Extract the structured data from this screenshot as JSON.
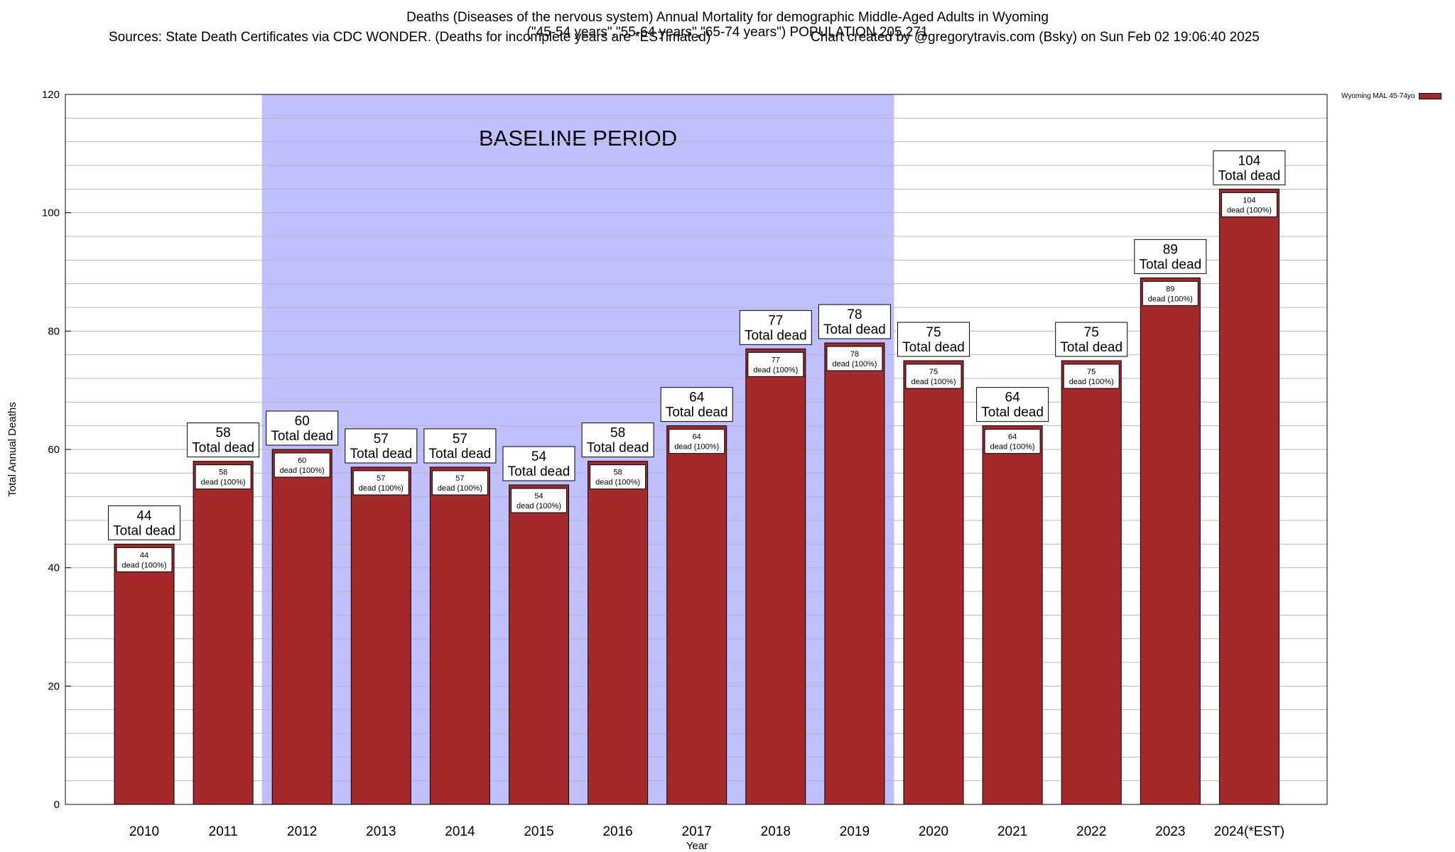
{
  "title": {
    "line1": "Deaths (Diseases of the nervous system) Annual Mortality for demographic Middle-Aged Adults in Wyoming",
    "line2": "(\"45-54 years\",\"55-64 years\",\"65-74 years\") POPULATION 205,271",
    "line3_left": "Sources: State Death Certificates via CDC WONDER. (Deaths for incomplete years are *ESTimated)",
    "line3_right": "Chart created by @gregorytravis.com (Bsky) on Sun Feb 02 19:06:40 2025"
  },
  "colors": {
    "bar": "#a4292b",
    "baseline": "#c0c0ff",
    "grid": "#b8b8b8"
  },
  "chart_data": {
    "type": "bar",
    "title": "Deaths (Diseases of the nervous system) Annual Mortality for demographic Middle-Aged Adults in Wyoming",
    "xlabel": "Year",
    "ylabel": "Total Annual Deaths",
    "ylim": [
      0,
      120
    ],
    "yticks": [
      0,
      20,
      40,
      60,
      80,
      100,
      120
    ],
    "grid": true,
    "legend_position": "top-right",
    "categories": [
      "2010",
      "2011",
      "2012",
      "2013",
      "2014",
      "2015",
      "2016",
      "2017",
      "2018",
      "2019",
      "2020",
      "2021",
      "2022",
      "2023",
      "2024(*EST)"
    ],
    "series": [
      {
        "name": "Wyoming MAL 45-74yo",
        "values": [
          44,
          58,
          60,
          57,
          57,
          54,
          58,
          64,
          77,
          78,
          75,
          64,
          75,
          89,
          104
        ]
      }
    ],
    "outer_label_suffix": "Total dead",
    "inner_label_suffix": "dead (100%)",
    "shaded_region": {
      "label": "BASELINE PERIOD",
      "from": "2012",
      "to": "2019"
    }
  }
}
